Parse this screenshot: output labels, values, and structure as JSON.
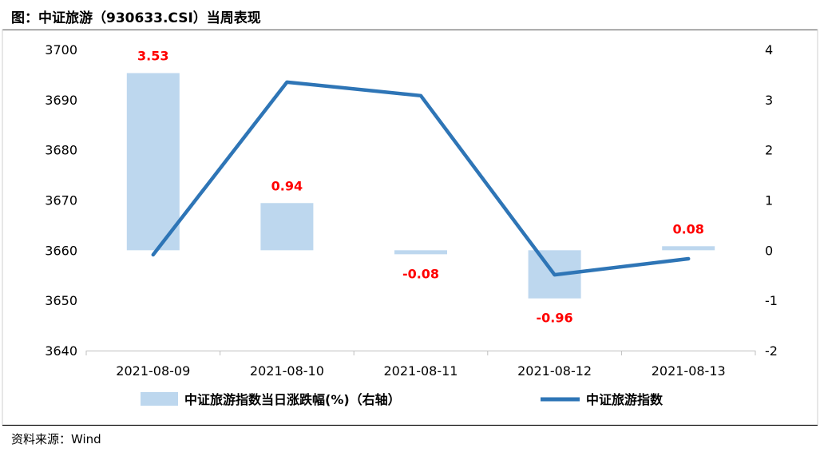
{
  "header": {
    "title": "图：中证旅游（930633.CSI）当周表现"
  },
  "footer": {
    "source": "资料来源：Wind"
  },
  "chart_data": {
    "type": "bar+line",
    "categories": [
      "2021-08-09",
      "2021-08-10",
      "2021-08-11",
      "2021-08-12",
      "2021-08-13"
    ],
    "series": [
      {
        "name": "中证旅游指数当日涨跌幅(%)（右轴）",
        "type": "bar",
        "axis": "right",
        "values": [
          3.53,
          0.94,
          -0.08,
          -0.96,
          0.08
        ],
        "data_labels": [
          "3.53",
          "0.94",
          "-0.08",
          "-0.96",
          "0.08"
        ],
        "color": "#bdd7ee",
        "label_color": "#ff0000"
      },
      {
        "name": "中证旅游指数",
        "type": "line",
        "axis": "left",
        "values": [
          3659.1,
          3693.5,
          3690.8,
          3655.1,
          3658.3
        ],
        "color": "#2e75b6"
      }
    ],
    "y_left": {
      "range": [
        3640,
        3700
      ],
      "ticks": [
        "3700",
        "3690",
        "3680",
        "3670",
        "3660",
        "3650",
        "3640"
      ]
    },
    "y_right": {
      "range": [
        -2,
        4
      ],
      "ticks": [
        "4",
        "3",
        "2",
        "1",
        "0",
        "-1",
        "-2"
      ]
    },
    "grid": false,
    "legend_position": "bottom"
  }
}
